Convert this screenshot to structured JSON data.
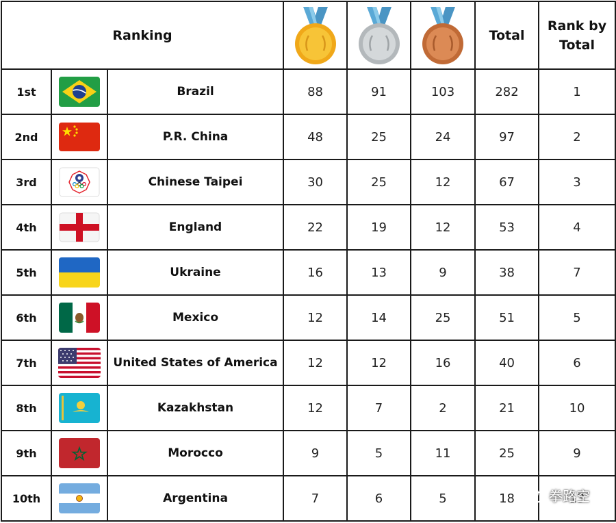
{
  "header": {
    "ranking_label": "Ranking",
    "gold_icon": "gold-medal-icon",
    "silver_icon": "silver-medal-icon",
    "bronze_icon": "bronze-medal-icon",
    "total_label": "Total",
    "rank_by_total_line1": "Rank by",
    "rank_by_total_line2": "Total"
  },
  "rows": [
    {
      "rank": "1st",
      "flag": "brazil-flag-icon",
      "country": "Brazil",
      "gold": "88",
      "silver": "91",
      "bronze": "103",
      "total": "282",
      "rank_by_total": "1"
    },
    {
      "rank": "2nd",
      "flag": "china-flag-icon",
      "country": "P.R. China",
      "gold": "48",
      "silver": "25",
      "bronze": "24",
      "total": "97",
      "rank_by_total": "2"
    },
    {
      "rank": "3rd",
      "flag": "chinese-taipei-flag-icon",
      "country": "Chinese Taipei",
      "gold": "30",
      "silver": "25",
      "bronze": "12",
      "total": "67",
      "rank_by_total": "3"
    },
    {
      "rank": "4th",
      "flag": "england-flag-icon",
      "country": "England",
      "gold": "22",
      "silver": "19",
      "bronze": "12",
      "total": "53",
      "rank_by_total": "4"
    },
    {
      "rank": "5th",
      "flag": "ukraine-flag-icon",
      "country": "Ukraine",
      "gold": "16",
      "silver": "13",
      "bronze": "9",
      "total": "38",
      "rank_by_total": "7"
    },
    {
      "rank": "6th",
      "flag": "mexico-flag-icon",
      "country": "Mexico",
      "gold": "12",
      "silver": "14",
      "bronze": "25",
      "total": "51",
      "rank_by_total": "5"
    },
    {
      "rank": "7th",
      "flag": "usa-flag-icon",
      "country": "United States of America",
      "gold": "12",
      "silver": "12",
      "bronze": "16",
      "total": "40",
      "rank_by_total": "6"
    },
    {
      "rank": "8th",
      "flag": "kazakhstan-flag-icon",
      "country": "Kazakhstan",
      "gold": "12",
      "silver": "7",
      "bronze": "2",
      "total": "21",
      "rank_by_total": "10"
    },
    {
      "rank": "9th",
      "flag": "morocco-flag-icon",
      "country": "Morocco",
      "gold": "9",
      "silver": "5",
      "bronze": "11",
      "total": "25",
      "rank_by_total": "9"
    },
    {
      "rank": "10th",
      "flag": "argentina-flag-icon",
      "country": "Argentina",
      "gold": "7",
      "silver": "6",
      "bronze": "5",
      "total": "18",
      "rank_by_total": "13"
    }
  ],
  "colors": {
    "border": "#1a1a1a",
    "gold": "#f5b82a",
    "silver": "#c7cbcd",
    "bronze": "#d07a45",
    "ribbon": "#5aa9d6"
  },
  "watermark": {
    "icon": "wechat-icon",
    "text": "拳路空"
  }
}
